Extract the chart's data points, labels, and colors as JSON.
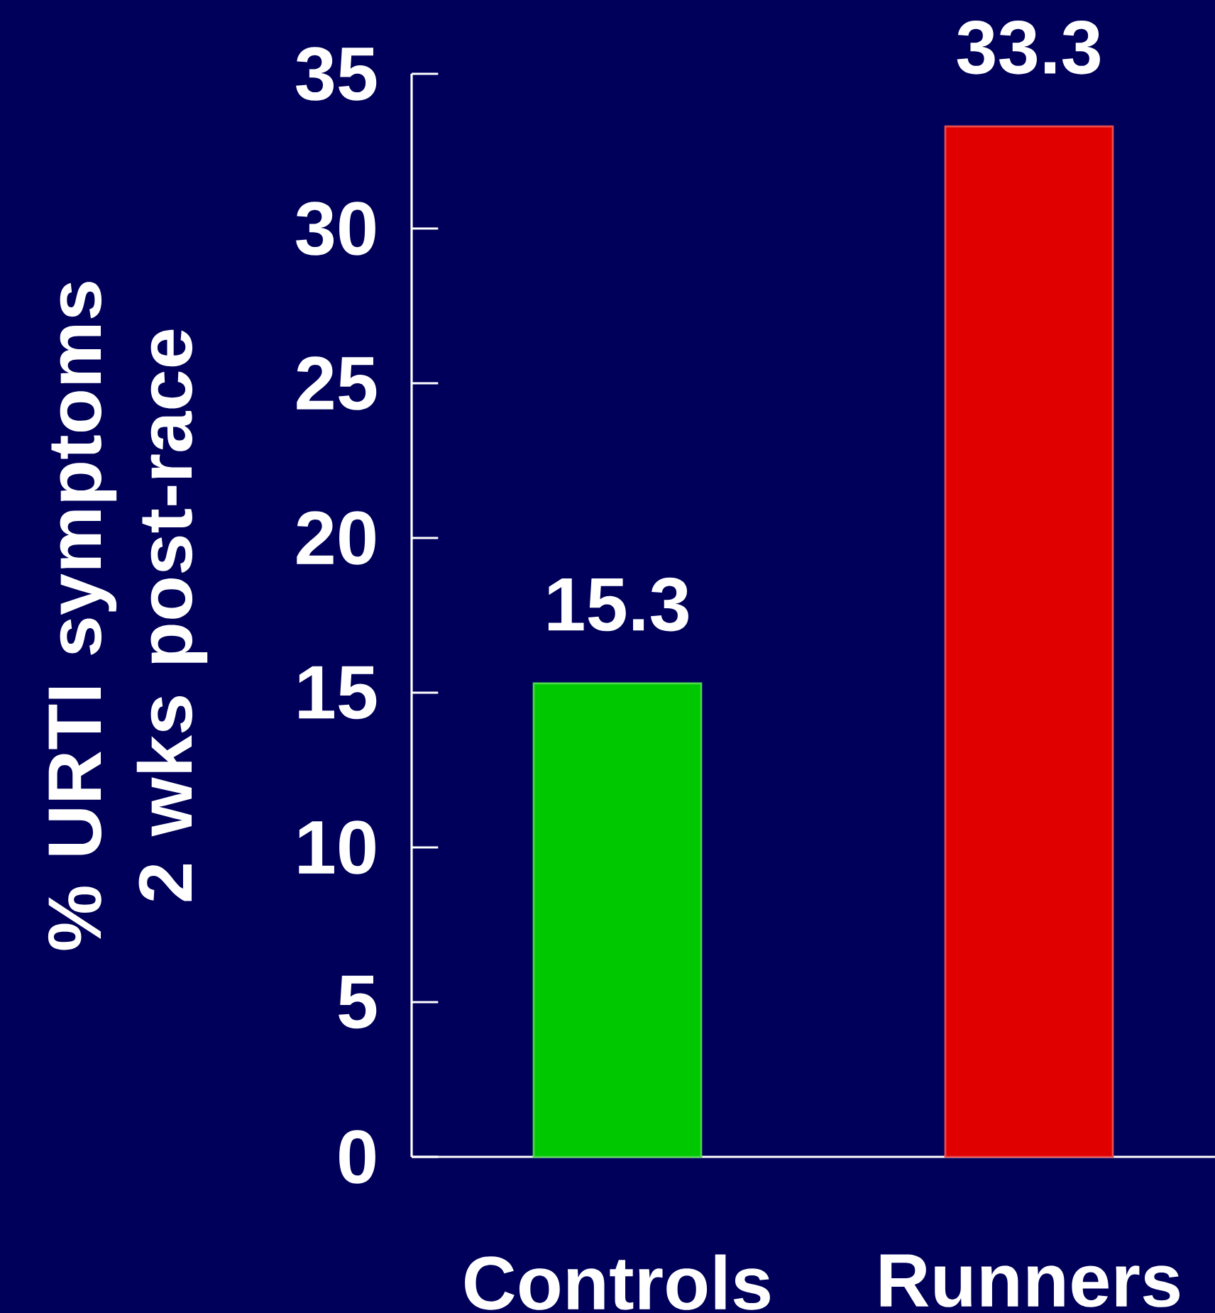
{
  "chart_data": {
    "type": "bar",
    "ylabel": "% URTI symptoms 2 wks post-race",
    "categories": [
      "Controls",
      "Runners"
    ],
    "values": [
      15.3,
      33.3
    ],
    "colors": [
      "#00c800",
      "#e00000"
    ],
    "ylim": [
      0,
      35
    ],
    "yticks": [
      0,
      5,
      10,
      15,
      20,
      25,
      30,
      35
    ],
    "data_labels": true,
    "grid": false
  }
}
